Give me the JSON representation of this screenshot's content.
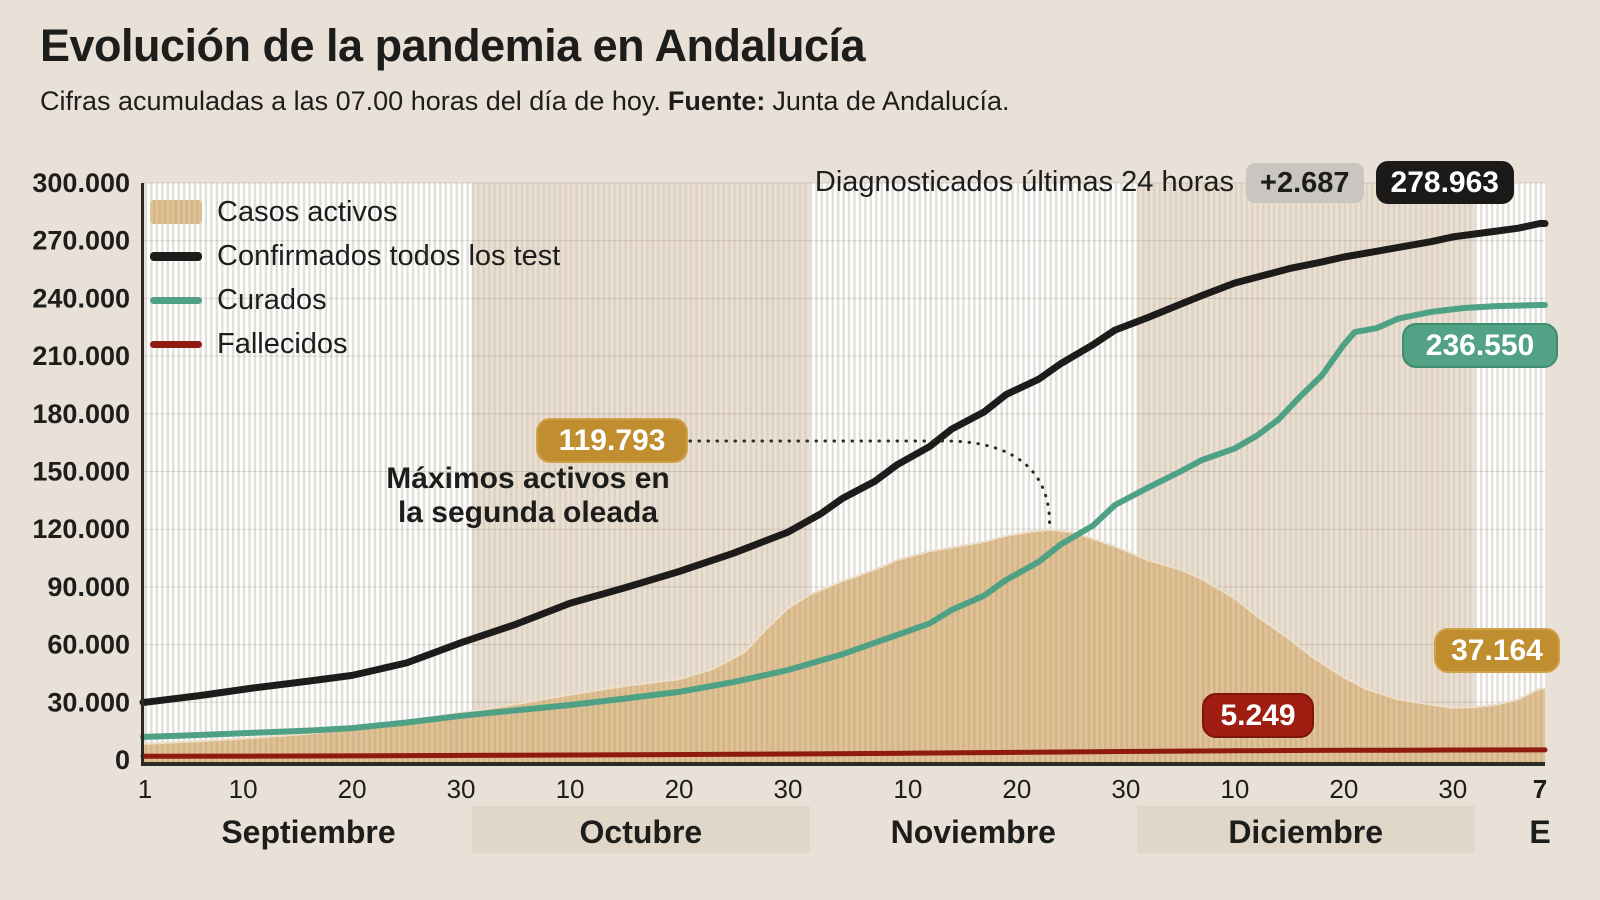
{
  "title": "Evolución de la pandemia en Andalucía",
  "subtitle": {
    "text": "Cifras acumuladas a las 07.00 horas del día de hoy.",
    "source_label": "Fuente:",
    "source_value": "Junta de Andalucía."
  },
  "header_right": {
    "label": "Diagnosticados últimas 24 horas",
    "delta_badge": "+2.687",
    "total_badge": "278.963"
  },
  "annotation": {
    "value": "119.793",
    "line1": "Máximos activos en",
    "line2": "la segunda oleada"
  },
  "badges": {
    "curados": "236.550",
    "activos": "37.164",
    "fallecidos": "5.249"
  },
  "colors": {
    "background": "#e9e1d8",
    "text": "#1d1d1b",
    "band_plain": "#ffffff",
    "band_plain_stripe": "#e1ded8",
    "band_shaded": "#e9dfd3",
    "band_shaded_stripe": "#ddd1c1",
    "month_box": "#e1d7c8",
    "axis": "#2b2a26",
    "gridline": "rgba(90,80,65,0.18)"
  },
  "chart_data": {
    "type": "area+line",
    "x_unit": "days since 1 September",
    "days_total": 128,
    "ylim": [
      0,
      300000
    ],
    "grid": true,
    "legend_position": "top-left",
    "y_ticks": [
      {
        "v": 0,
        "label": "0"
      },
      {
        "v": 30000,
        "label": "30.000"
      },
      {
        "v": 60000,
        "label": "60.000"
      },
      {
        "v": 90000,
        "label": "90.000"
      },
      {
        "v": 120000,
        "label": "120.000"
      },
      {
        "v": 150000,
        "label": "150.000"
      },
      {
        "v": 180000,
        "label": "180.000"
      },
      {
        "v": 210000,
        "label": "210.000"
      },
      {
        "v": 240000,
        "label": "240.000"
      },
      {
        "v": 270000,
        "label": "270.000"
      },
      {
        "v": 300000,
        "label": "300.000"
      }
    ],
    "x_ticks": [
      {
        "day": 0,
        "label": "1"
      },
      {
        "day": 9,
        "label": "10"
      },
      {
        "day": 19,
        "label": "20"
      },
      {
        "day": 29,
        "label": "30"
      },
      {
        "day": 39,
        "label": "10"
      },
      {
        "day": 49,
        "label": "20"
      },
      {
        "day": 59,
        "label": "30"
      },
      {
        "day": 70,
        "label": "10"
      },
      {
        "day": 80,
        "label": "20"
      },
      {
        "day": 90,
        "label": "30"
      },
      {
        "day": 100,
        "label": "10"
      },
      {
        "day": 110,
        "label": "20"
      },
      {
        "day": 120,
        "label": "30"
      },
      {
        "day": 128,
        "label": "7",
        "bold": true
      }
    ],
    "months": [
      {
        "label": "Septiembre",
        "start": 0,
        "end": 30,
        "shaded": false
      },
      {
        "label": "Octubre",
        "start": 30,
        "end": 61,
        "shaded": true
      },
      {
        "label": "Noviembre",
        "start": 61,
        "end": 91,
        "shaded": false
      },
      {
        "label": "Diciembre",
        "start": 91,
        "end": 122,
        "shaded": true
      },
      {
        "label": "E",
        "start": 122,
        "end": 128.6,
        "shaded": false,
        "label_day": 128
      }
    ],
    "series": [
      {
        "key": "activos",
        "name": "Casos activos",
        "type": "area",
        "color": "#dfc295",
        "stripe": "#d3b486",
        "edge": "#ecdfc9",
        "peak_annotation": 119793,
        "end_value": 37164,
        "points": [
          [
            0,
            8500
          ],
          [
            5,
            9800
          ],
          [
            10,
            11500
          ],
          [
            15,
            13600
          ],
          [
            19,
            16000
          ],
          [
            24,
            20000
          ],
          [
            29,
            24500
          ],
          [
            34,
            29000
          ],
          [
            39,
            34000
          ],
          [
            44,
            38500
          ],
          [
            49,
            42000
          ],
          [
            52,
            47000
          ],
          [
            55,
            56000
          ],
          [
            57,
            68000
          ],
          [
            59,
            79000
          ],
          [
            61,
            86000
          ],
          [
            64,
            93000
          ],
          [
            67,
            99000
          ],
          [
            69,
            104000
          ],
          [
            72,
            108500
          ],
          [
            75,
            111500
          ],
          [
            77,
            113500
          ],
          [
            79,
            116500
          ],
          [
            81,
            118500
          ],
          [
            83,
            119793
          ],
          [
            85,
            118500
          ],
          [
            87,
            115000
          ],
          [
            89,
            111000
          ],
          [
            92,
            104000
          ],
          [
            95,
            99000
          ],
          [
            97,
            94000
          ],
          [
            100,
            84000
          ],
          [
            102,
            75000
          ],
          [
            105,
            63000
          ],
          [
            107,
            54000
          ],
          [
            110,
            43000
          ],
          [
            112,
            37000
          ],
          [
            115,
            31500
          ],
          [
            118,
            28800
          ],
          [
            120,
            27200
          ],
          [
            122,
            27500
          ],
          [
            124,
            28800
          ],
          [
            126,
            31500
          ],
          [
            128,
            37164
          ]
        ]
      },
      {
        "key": "confirmados",
        "name": "Confirmados todos los test",
        "type": "line",
        "color": "#1d1c1a",
        "end_value": 278963,
        "points": [
          [
            0,
            30000
          ],
          [
            5,
            33500
          ],
          [
            10,
            37500
          ],
          [
            15,
            41000
          ],
          [
            19,
            44000
          ],
          [
            24,
            50500
          ],
          [
            29,
            61000
          ],
          [
            34,
            70500
          ],
          [
            39,
            81500
          ],
          [
            44,
            89500
          ],
          [
            49,
            98000
          ],
          [
            54,
            107500
          ],
          [
            59,
            118500
          ],
          [
            62,
            128000
          ],
          [
            64,
            136000
          ],
          [
            67,
            145000
          ],
          [
            69,
            153500
          ],
          [
            72,
            163000
          ],
          [
            74,
            172000
          ],
          [
            77,
            181000
          ],
          [
            79,
            190000
          ],
          [
            82,
            198000
          ],
          [
            84,
            206000
          ],
          [
            87,
            216000
          ],
          [
            89,
            223500
          ],
          [
            92,
            230000
          ],
          [
            95,
            237000
          ],
          [
            97,
            241500
          ],
          [
            100,
            248000
          ],
          [
            103,
            252500
          ],
          [
            105,
            255500
          ],
          [
            108,
            259000
          ],
          [
            110,
            261500
          ],
          [
            113,
            264500
          ],
          [
            115,
            266500
          ],
          [
            118,
            269500
          ],
          [
            120,
            272000
          ],
          [
            122,
            273500
          ],
          [
            124,
            275000
          ],
          [
            126,
            276500
          ],
          [
            128,
            278963
          ]
        ]
      },
      {
        "key": "curados",
        "name": "Curados",
        "type": "line",
        "color": "#4ea184",
        "end_value": 236550,
        "points": [
          [
            0,
            12000
          ],
          [
            5,
            13000
          ],
          [
            10,
            14200
          ],
          [
            15,
            15300
          ],
          [
            19,
            16600
          ],
          [
            24,
            19500
          ],
          [
            29,
            23000
          ],
          [
            34,
            25800
          ],
          [
            39,
            28600
          ],
          [
            44,
            31900
          ],
          [
            49,
            35400
          ],
          [
            54,
            40500
          ],
          [
            59,
            46800
          ],
          [
            64,
            55000
          ],
          [
            69,
            65000
          ],
          [
            72,
            71000
          ],
          [
            74,
            78000
          ],
          [
            77,
            85500
          ],
          [
            79,
            93600
          ],
          [
            82,
            103000
          ],
          [
            84,
            112000
          ],
          [
            87,
            122000
          ],
          [
            89,
            132600
          ],
          [
            92,
            141500
          ],
          [
            95,
            150000
          ],
          [
            97,
            156000
          ],
          [
            100,
            162000
          ],
          [
            102,
            168500
          ],
          [
            104,
            177000
          ],
          [
            106,
            189000
          ],
          [
            108,
            200000
          ],
          [
            110,
            216000
          ],
          [
            111,
            222500
          ],
          [
            113,
            224500
          ],
          [
            115,
            229500
          ],
          [
            118,
            233000
          ],
          [
            121,
            235000
          ],
          [
            124,
            236000
          ],
          [
            128,
            236550
          ]
        ]
      },
      {
        "key": "fallecidos",
        "name": "Fallecidos",
        "type": "line",
        "color": "#8e1a10",
        "end_value": 5249,
        "points": [
          [
            0,
            1900
          ],
          [
            15,
            2100
          ],
          [
            30,
            2400
          ],
          [
            45,
            2750
          ],
          [
            61,
            3150
          ],
          [
            75,
            3750
          ],
          [
            91,
            4450
          ],
          [
            100,
            4800
          ],
          [
            105,
            4950
          ],
          [
            110,
            5050
          ],
          [
            115,
            5120
          ],
          [
            120,
            5180
          ],
          [
            128,
            5249
          ]
        ]
      }
    ]
  }
}
